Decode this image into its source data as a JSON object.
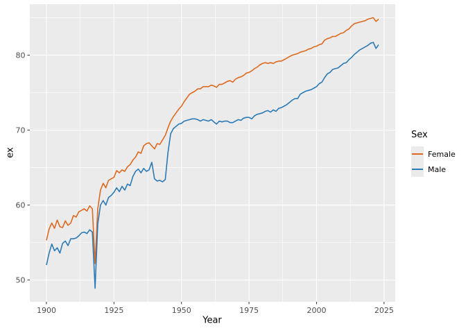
{
  "figure": {
    "background": "#FFFFFF",
    "panel_background": "#EBEBEB",
    "grid_color": "#FFFFFF",
    "tick_mark_color": "#333333",
    "tick_label_color": "#4D4D4D",
    "axis_title_color": "#000000"
  },
  "chart_data": {
    "type": "line",
    "title": "",
    "xlabel": "Year",
    "ylabel": "ex",
    "xlim": [
      1893.85,
      2029.15
    ],
    "ylim": [
      47.1,
      86.8
    ],
    "x_ticks": [
      1900,
      1925,
      1950,
      1975,
      2000,
      2025
    ],
    "y_ticks": [
      50,
      60,
      70,
      80
    ],
    "x_minor_breaks": [
      1912.5,
      1937.5,
      1962.5,
      1987.5,
      2012.5
    ],
    "y_minor_breaks": [
      55,
      65,
      75,
      85
    ],
    "grid": true,
    "legend": {
      "title": "Sex",
      "position": "right",
      "entries": [
        {
          "label": "Female",
          "color": "#DE691E"
        },
        {
          "label": "Male",
          "color": "#2B79B5"
        }
      ]
    },
    "x_range": {
      "start": 1900,
      "end": 2023,
      "step": 1
    },
    "series": [
      {
        "name": "Female",
        "color": "#DE691E",
        "values": [
          55.3,
          56.8,
          57.6,
          56.9,
          58.0,
          57.1,
          57.0,
          57.9,
          57.3,
          57.6,
          58.6,
          58.4,
          59.1,
          59.3,
          59.5,
          59.2,
          59.9,
          59.5,
          52.2,
          59.5,
          62.0,
          62.9,
          62.3,
          63.3,
          63.5,
          63.7,
          64.6,
          64.3,
          64.7,
          64.5,
          65.1,
          65.4,
          66.0,
          66.4,
          67.1,
          66.9,
          67.9,
          68.2,
          68.3,
          67.9,
          67.5,
          68.2,
          68.1,
          68.7,
          69.3,
          70.3,
          71.2,
          71.8,
          72.3,
          72.8,
          73.2,
          73.8,
          74.3,
          74.8,
          75.0,
          75.2,
          75.5,
          75.5,
          75.8,
          75.8,
          75.8,
          76.0,
          75.9,
          75.7,
          76.1,
          76.1,
          76.3,
          76.5,
          76.6,
          76.4,
          76.8,
          77.0,
          77.1,
          77.3,
          77.6,
          77.7,
          77.9,
          78.2,
          78.4,
          78.7,
          78.9,
          79.0,
          78.9,
          79.0,
          78.9,
          79.1,
          79.2,
          79.2,
          79.4,
          79.6,
          79.8,
          80.0,
          80.1,
          80.2,
          80.4,
          80.5,
          80.6,
          80.8,
          80.9,
          81.1,
          81.2,
          81.4,
          81.5,
          82.0,
          82.2,
          82.3,
          82.5,
          82.5,
          82.7,
          82.9,
          83.0,
          83.3,
          83.5,
          83.9,
          84.2,
          84.3,
          84.4,
          84.5,
          84.6,
          84.8,
          84.9,
          85.0,
          84.5,
          84.8
        ]
      },
      {
        "name": "Male",
        "color": "#2B79B5",
        "values": [
          52.0,
          53.6,
          54.8,
          53.9,
          54.3,
          53.6,
          54.9,
          55.2,
          54.6,
          55.5,
          55.5,
          55.6,
          55.9,
          56.3,
          56.4,
          56.2,
          56.7,
          56.4,
          48.9,
          57.5,
          60.0,
          60.6,
          60.0,
          61.0,
          61.3,
          61.7,
          62.3,
          61.8,
          62.5,
          62.0,
          62.8,
          62.6,
          63.8,
          64.5,
          64.8,
          64.3,
          64.9,
          64.5,
          64.7,
          65.7,
          63.5,
          63.2,
          63.3,
          63.1,
          63.4,
          67.0,
          69.5,
          70.2,
          70.5,
          70.8,
          70.9,
          71.2,
          71.3,
          71.4,
          71.5,
          71.5,
          71.4,
          71.2,
          71.4,
          71.3,
          71.2,
          71.4,
          71.1,
          70.8,
          71.2,
          71.1,
          71.2,
          71.2,
          71.0,
          71.0,
          71.2,
          71.4,
          71.3,
          71.6,
          71.7,
          71.7,
          71.5,
          71.9,
          72.1,
          72.2,
          72.3,
          72.5,
          72.6,
          72.4,
          72.7,
          72.5,
          72.9,
          73.0,
          73.2,
          73.4,
          73.7,
          74.0,
          74.2,
          74.2,
          74.8,
          75.0,
          75.2,
          75.3,
          75.4,
          75.6,
          75.8,
          76.2,
          76.4,
          77.0,
          77.5,
          77.7,
          78.1,
          78.2,
          78.3,
          78.6,
          78.9,
          79.0,
          79.4,
          79.7,
          80.1,
          80.4,
          80.7,
          80.9,
          81.1,
          81.3,
          81.6,
          81.7,
          80.9,
          81.4
        ]
      }
    ]
  }
}
